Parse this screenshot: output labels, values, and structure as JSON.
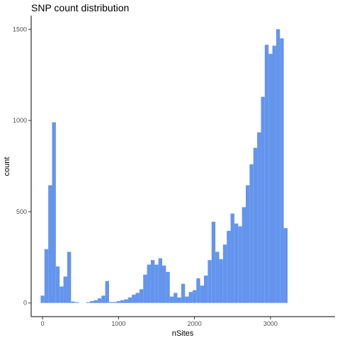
{
  "chart_data": {
    "type": "bar",
    "title": "SNP count distribution",
    "xlabel": "nSites",
    "ylabel": "count",
    "bar_color": "#6495ED",
    "xlim": [
      -150,
      3850
    ],
    "ylim": [
      -75,
      1575
    ],
    "x_ticks": [
      0,
      1000,
      2000,
      3000
    ],
    "y_ticks": [
      0,
      500,
      1000,
      1500
    ],
    "grid": false,
    "bin_width": 50,
    "bin_centers": [
      0,
      50,
      100,
      150,
      200,
      250,
      300,
      350,
      400,
      450,
      500,
      550,
      600,
      650,
      700,
      750,
      800,
      850,
      900,
      950,
      1000,
      1050,
      1100,
      1150,
      1200,
      1250,
      1300,
      1350,
      1400,
      1450,
      1500,
      1550,
      1600,
      1650,
      1700,
      1750,
      1800,
      1850,
      1900,
      1950,
      2000,
      2050,
      2100,
      2150,
      2200,
      2250,
      2300,
      2350,
      2400,
      2450,
      2500,
      2550,
      2600,
      2650,
      2700,
      2750,
      2800,
      2850,
      2900,
      2950,
      3000,
      3050,
      3100,
      3150,
      3200,
      3250,
      3300,
      3350,
      3400,
      3450,
      3500,
      3550,
      3600,
      3650,
      3700
    ],
    "values": [
      40,
      295,
      645,
      990,
      200,
      90,
      145,
      280,
      8,
      4,
      0,
      0,
      4,
      10,
      15,
      25,
      40,
      120,
      5,
      5,
      10,
      15,
      20,
      30,
      45,
      55,
      75,
      155,
      210,
      235,
      210,
      245,
      205,
      170,
      35,
      55,
      30,
      105,
      35,
      60,
      70,
      135,
      95,
      150,
      235,
      445,
      280,
      240,
      320,
      395,
      490,
      435,
      420,
      525,
      645,
      760,
      850,
      935,
      1130,
      1415,
      1365,
      1410,
      1500,
      1450,
      410
    ]
  }
}
